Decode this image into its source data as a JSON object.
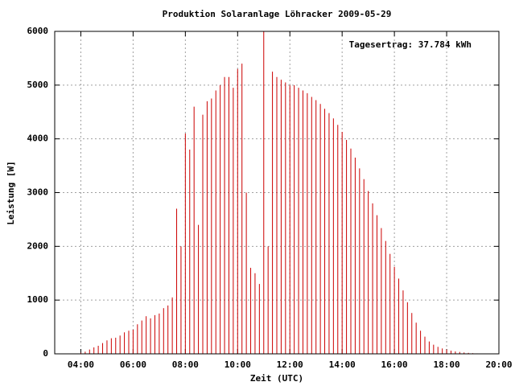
{
  "chart_data": {
    "type": "impulse",
    "title": "Produktion Solaranlage Löhracker 2009-05-29",
    "annotation": "Tagesertrag: 37.784 kWh",
    "xlabel": "Zeit (UTC)",
    "ylabel": "Leistung [W]",
    "color": "#cc0000",
    "grid": true,
    "xlim": [
      180,
      1200
    ],
    "ylim": [
      0,
      6000
    ],
    "xticks": [
      {
        "value": 240,
        "label": "04:00"
      },
      {
        "value": 360,
        "label": "06:00"
      },
      {
        "value": 480,
        "label": "08:00"
      },
      {
        "value": 600,
        "label": "10:00"
      },
      {
        "value": 720,
        "label": "12:00"
      },
      {
        "value": 840,
        "label": "14:00"
      },
      {
        "value": 960,
        "label": "16:00"
      },
      {
        "value": 1080,
        "label": "18:00"
      },
      {
        "value": 1200,
        "label": "20:00"
      }
    ],
    "yticks": [
      0,
      1000,
      2000,
      3000,
      4000,
      5000,
      6000
    ],
    "x": [
      240,
      250,
      260,
      270,
      280,
      290,
      300,
      310,
      320,
      330,
      340,
      350,
      360,
      370,
      380,
      390,
      400,
      410,
      420,
      430,
      440,
      450,
      460,
      470,
      480,
      490,
      500,
      510,
      520,
      530,
      540,
      550,
      560,
      570,
      580,
      590,
      600,
      610,
      620,
      630,
      640,
      650,
      660,
      670,
      680,
      690,
      700,
      710,
      720,
      730,
      740,
      750,
      760,
      770,
      780,
      790,
      800,
      810,
      820,
      830,
      840,
      850,
      860,
      870,
      880,
      890,
      900,
      910,
      920,
      930,
      940,
      950,
      960,
      970,
      980,
      990,
      1000,
      1010,
      1020,
      1030,
      1040,
      1050,
      1060,
      1070,
      1080,
      1090,
      1100,
      1110,
      1120,
      1130,
      1140,
      1150,
      1160,
      1170
    ],
    "values": [
      20,
      40,
      80,
      120,
      150,
      200,
      250,
      290,
      300,
      340,
      400,
      430,
      450,
      550,
      620,
      700,
      660,
      720,
      750,
      850,
      900,
      1050,
      2700,
      2000,
      4100,
      3800,
      4600,
      2400,
      4450,
      4700,
      4750,
      4900,
      5000,
      5150,
      5150,
      4950,
      5300,
      5400,
      3000,
      1600,
      1500,
      1300,
      6000,
      2000,
      5250,
      5150,
      5100,
      5050,
      5000,
      5000,
      4950,
      4900,
      4850,
      4780,
      4720,
      4650,
      4560,
      4480,
      4380,
      4260,
      4130,
      3980,
      3820,
      3650,
      3450,
      3250,
      3030,
      2800,
      2580,
      2340,
      2100,
      1860,
      1620,
      1400,
      1180,
      960,
      760,
      580,
      430,
      320,
      230,
      170,
      130,
      100,
      80,
      60,
      45,
      35,
      25,
      18,
      12,
      8,
      5,
      3
    ]
  }
}
